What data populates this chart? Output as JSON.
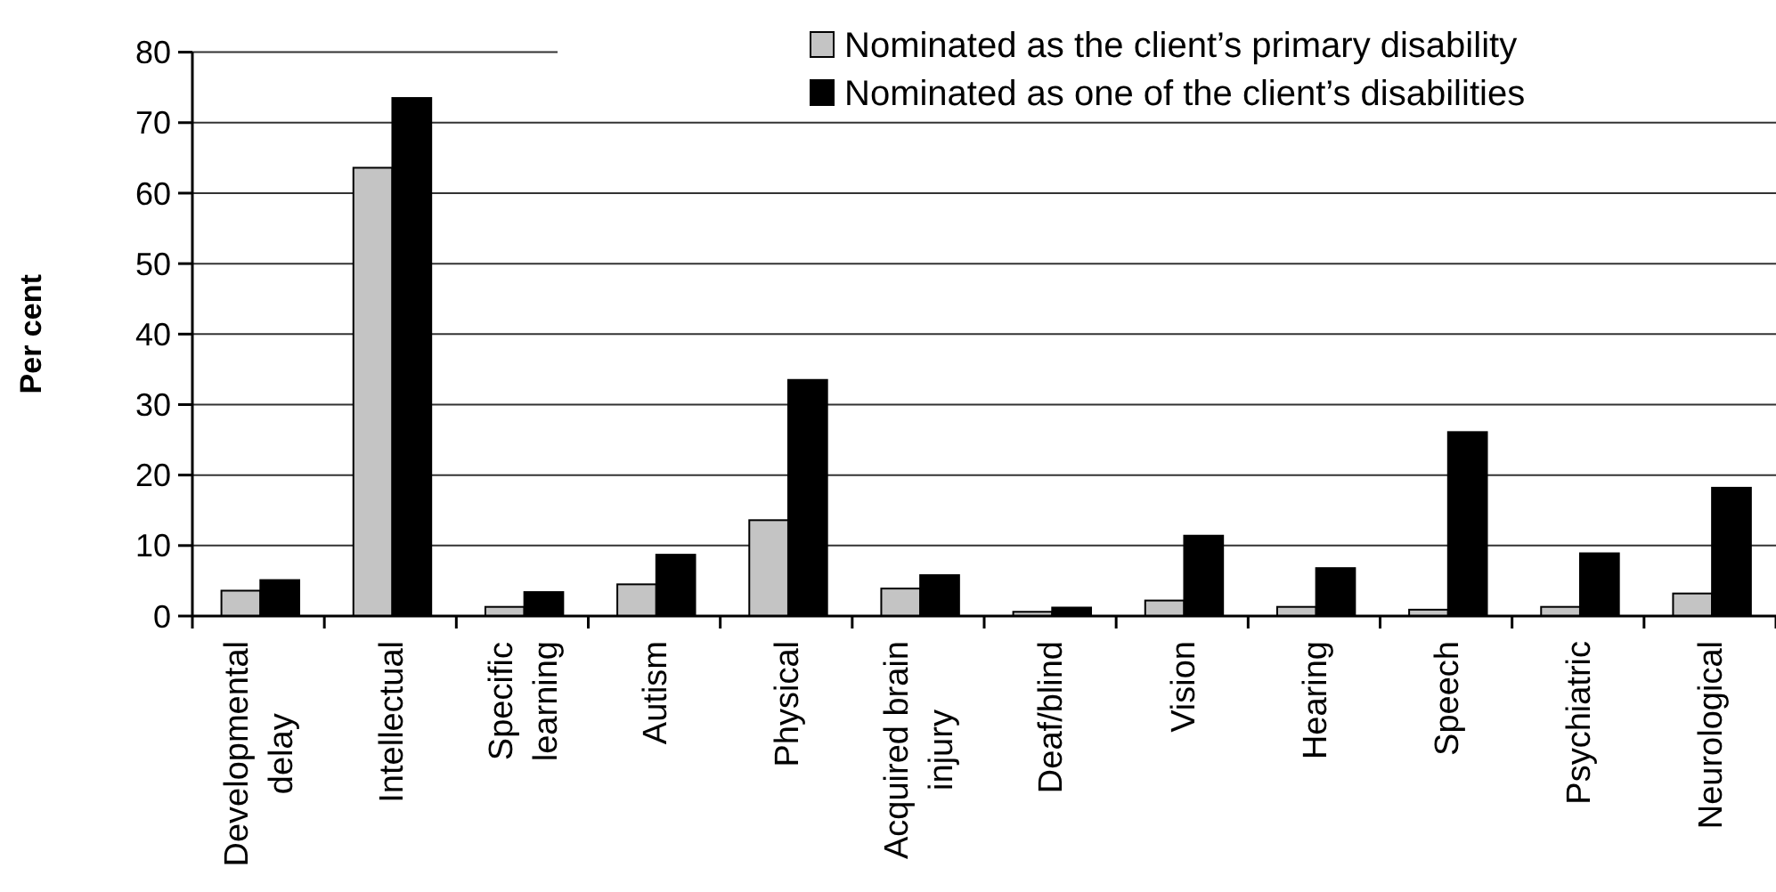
{
  "chart_data": {
    "type": "bar",
    "categories": [
      "Developmental delay",
      "Intellectual",
      "Specific learning",
      "Autism",
      "Physical",
      "Acquired brain injury",
      "Deaf/blind",
      "Vision",
      "Hearing",
      "Speech",
      "Psychiatric",
      "Neurological"
    ],
    "series": [
      {
        "name": "Nominated as the client’s primary disability",
        "color": "#c4c4c4",
        "values": [
          3.6,
          63.6,
          1.3,
          4.5,
          13.6,
          3.9,
          0.6,
          2.2,
          1.3,
          0.9,
          1.3,
          3.2
        ]
      },
      {
        "name": "Nominated as one of the client’s disabilities",
        "color": "#000000",
        "values": [
          5.1,
          73.5,
          3.4,
          8.7,
          33.5,
          5.8,
          1.2,
          11.4,
          6.8,
          26.1,
          8.9,
          18.2
        ]
      }
    ],
    "ylabel": "Per cent",
    "ylim": [
      0,
      80
    ],
    "yticks": [
      0,
      10,
      20,
      30,
      40,
      50,
      60,
      70,
      80
    ],
    "grid": "y",
    "legend": "top right"
  }
}
